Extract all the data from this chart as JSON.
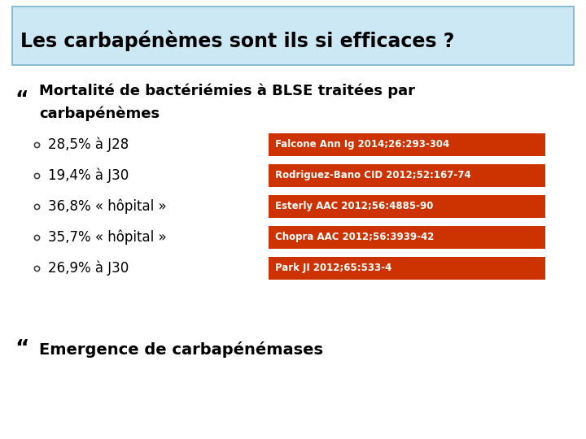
{
  "title": "Les carbapénèmes sont ils si efficaces ?",
  "title_bg_top": "#cce8f4",
  "title_bg_bottom": "#a8d4ec",
  "title_border_color": "#7ab0cc",
  "title_fontsize": 17,
  "title_fontweight": "bold",
  "background_color": "#ffffff",
  "bullet1_text_line1": "Mortalité de bactériémies à BLSE traitées par",
  "bullet1_text_line2": "carbapénèmes",
  "sub_bullets": [
    "28,5% à J28",
    "19,4% à J30",
    "36,8% « hôpital »",
    "35,7% « hôpital »",
    "26,9% à J30"
  ],
  "references": [
    "Falcone Ann Ig 2014;26:293-304",
    "Rodriguez-Bano CID 2012;52:167-74",
    "Esterly AAC 2012;56:4885-90",
    "Chopra AAC 2012;56:3939-42",
    "Park JI 2012;65:533-4"
  ],
  "ref_bg_color": "#cc3300",
  "ref_text_color": "#ffffff",
  "ref_fontsize": 8.5,
  "bullet2_text": "Emergence de carbapénémases",
  "bullet_fontsize": 13,
  "sub_bullet_fontsize": 12,
  "bullet2_fontsize": 14
}
